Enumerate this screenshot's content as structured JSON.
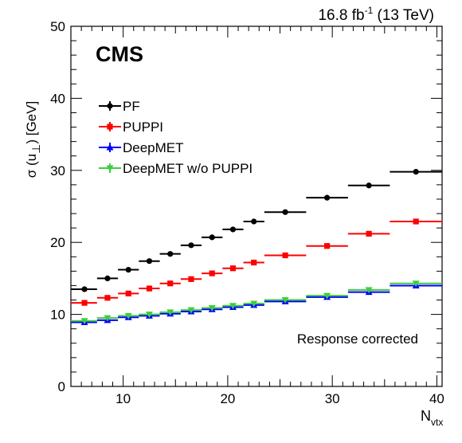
{
  "chart_data": {
    "type": "scatter",
    "lumi_label": "16.8 fb",
    "lumi_exponent": "-1",
    "lumi_suffix": " (13 TeV)",
    "experiment_label": "CMS",
    "annotation": "Response corrected",
    "ylabel": "σ (u",
    "ylabel_subscript": "⊥",
    "ylabel_suffix": ") [GeV]",
    "xlabel": "N",
    "xlabel_subscript": "vtx",
    "xlim": [
      5,
      40.5
    ],
    "ylim": [
      0,
      50
    ],
    "x_ticks": [
      10,
      20,
      30,
      40
    ],
    "y_ticks": [
      0,
      10,
      20,
      30,
      40,
      50
    ],
    "bins": [
      [
        5,
        7.5
      ],
      [
        7.5,
        9.5
      ],
      [
        9.5,
        11.5
      ],
      [
        11.5,
        13.5
      ],
      [
        13.5,
        15.5
      ],
      [
        15.5,
        17.5
      ],
      [
        17.5,
        19.5
      ],
      [
        19.5,
        21.5
      ],
      [
        21.5,
        23.5
      ],
      [
        23.5,
        27.5
      ],
      [
        27.5,
        31.5
      ],
      [
        31.5,
        35.5
      ],
      [
        35.5,
        40.5
      ]
    ],
    "x": [
      6.3,
      8.5,
      10.5,
      12.5,
      14.5,
      16.5,
      18.5,
      20.5,
      22.5,
      25.5,
      29.5,
      33.5,
      38
    ],
    "series": [
      {
        "name": "PF",
        "color": "#000000",
        "marker": "circle",
        "values": [
          13.5,
          15.0,
          16.2,
          17.4,
          18.4,
          19.6,
          20.7,
          21.8,
          22.9,
          24.2,
          26.2,
          27.9,
          29.8
        ]
      },
      {
        "name": "PUPPI",
        "color": "#ff0000",
        "marker": "square",
        "values": [
          11.6,
          12.3,
          12.9,
          13.6,
          14.3,
          14.9,
          15.7,
          16.4,
          17.2,
          18.2,
          19.5,
          21.2,
          22.9
        ]
      },
      {
        "name": "DeepMET",
        "color": "#0000ff",
        "marker": "triangle",
        "values": [
          8.9,
          9.2,
          9.6,
          9.8,
          10.1,
          10.4,
          10.7,
          11.0,
          11.3,
          11.8,
          12.4,
          13.1,
          14.0
        ]
      },
      {
        "name": "DeepMET w/o PUPPI",
        "color": "#3fcc3f",
        "marker": "triangle-down",
        "values": [
          9.1,
          9.5,
          9.8,
          10.0,
          10.3,
          10.6,
          10.9,
          11.2,
          11.5,
          12.0,
          12.6,
          13.4,
          14.3
        ]
      }
    ],
    "legend_position": "upper-left",
    "grid": false
  }
}
